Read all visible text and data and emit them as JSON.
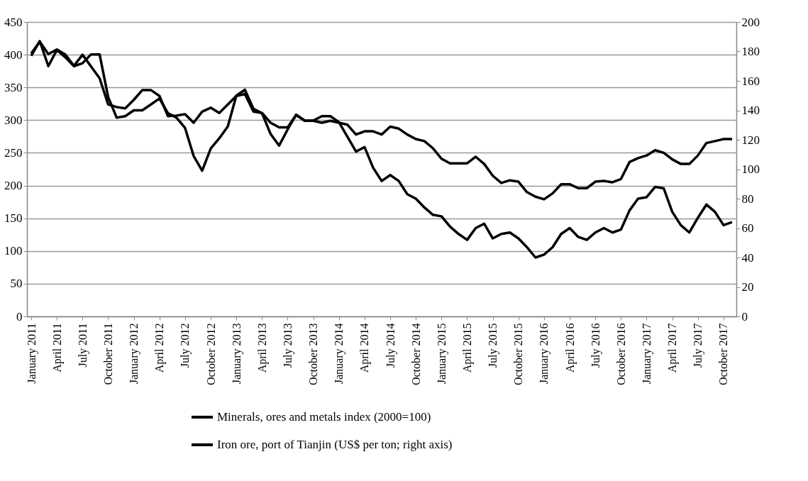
{
  "chart_data": {
    "type": "line",
    "categories": [
      "January 2011",
      null,
      null,
      "April 2011",
      null,
      null,
      "July 2011",
      null,
      null,
      "October 2011",
      null,
      null,
      "January 2012",
      null,
      null,
      "April 2012",
      null,
      null,
      "July 2012",
      null,
      null,
      "October 2012",
      null,
      null,
      "January 2013",
      null,
      null,
      "April 2013",
      null,
      null,
      "July 2013",
      null,
      null,
      "October 2013",
      null,
      null,
      "January 2014",
      null,
      null,
      "April 2014",
      null,
      null,
      "July 2014",
      null,
      null,
      "October 2014",
      null,
      null,
      "January 2015",
      null,
      null,
      "April 2015",
      null,
      null,
      "July 2015",
      null,
      null,
      "October 2015",
      null,
      null,
      "January 2016",
      null,
      null,
      "April 2016",
      null,
      null,
      "July 2016",
      null,
      null,
      "October 2016",
      null,
      null,
      "January 2017",
      null,
      null,
      "April 2017",
      null,
      null,
      "July 2017",
      null,
      null,
      "October 2017",
      null
    ],
    "series": [
      {
        "name": "Minerals, ores and metals index (2000=100)",
        "color": "#000000",
        "values": [
          402,
          420,
          401,
          408,
          400,
          383,
          400,
          382,
          364,
          324,
          320,
          318,
          331,
          346,
          346,
          337,
          306,
          307,
          309,
          296,
          313,
          319,
          311,
          324,
          337,
          340,
          313,
          311,
          296,
          289,
          289,
          308,
          299,
          299,
          296,
          299,
          296,
          293,
          278,
          283,
          283,
          278,
          290,
          287,
          278,
          271,
          268,
          257,
          241,
          234,
          234,
          234,
          244,
          233,
          215,
          204,
          208,
          206,
          190,
          183,
          179,
          188,
          202,
          202,
          196,
          196,
          206,
          207,
          205,
          210,
          236,
          242,
          246,
          254,
          250,
          240,
          233,
          233,
          246,
          265,
          268,
          271,
          271
        ]
      },
      {
        "name": "Iron ore, port of Tianjin (US$ per ton; right axis)",
        "color": "#000000",
        "axis": "y2",
        "values": [
          177,
          187,
          170,
          181,
          176,
          170,
          172,
          178,
          178,
          149,
          135,
          136,
          140,
          140,
          144,
          148,
          138,
          135,
          128,
          109,
          99,
          114,
          121,
          129,
          150,
          154,
          141,
          138,
          124,
          116,
          127,
          137,
          133,
          133,
          136,
          136,
          132,
          122,
          112,
          115,
          101,
          92,
          96,
          92,
          83,
          80,
          74,
          69,
          68,
          61,
          56,
          52,
          60,
          63,
          53,
          56,
          57,
          53,
          47,
          40,
          42,
          47,
          56,
          60,
          54,
          52,
          57,
          60,
          57,
          59,
          72,
          80,
          81,
          88,
          87,
          71,
          62,
          57,
          67,
          76,
          71,
          62,
          64
        ]
      }
    ],
    "ylim": [
      0,
      450
    ],
    "yticks": [
      0,
      50,
      100,
      150,
      200,
      250,
      300,
      350,
      400,
      450
    ],
    "y2lim": [
      0,
      200
    ],
    "y2ticks": [
      0,
      20,
      40,
      60,
      80,
      100,
      120,
      140,
      160,
      180,
      200
    ],
    "grid": "y",
    "legend": "bottom"
  }
}
